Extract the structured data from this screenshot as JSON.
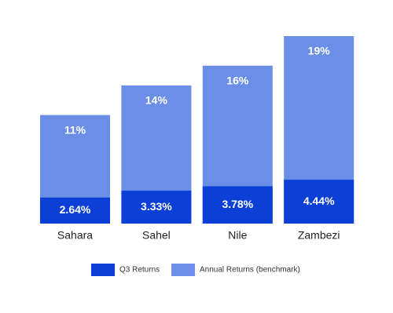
{
  "chart_data": {
    "type": "overlap-bar",
    "categories": [
      "Sahara",
      "Sahel",
      "Nile",
      "Zambezi"
    ],
    "series": [
      {
        "name": "Q3 Returns",
        "color": "#0b3fd6",
        "values": [
          2.64,
          3.33,
          3.78,
          4.44
        ],
        "value_labels": [
          "2.64%",
          "3.33%",
          "3.78%",
          "4.44%"
        ]
      },
      {
        "name": "Annual Returns (benchmark)",
        "color": "#6b8fe6",
        "values": [
          11,
          14,
          16,
          19
        ],
        "value_labels": [
          "11%",
          "14%",
          "16%",
          "19%"
        ]
      }
    ],
    "legend": "bottom"
  }
}
